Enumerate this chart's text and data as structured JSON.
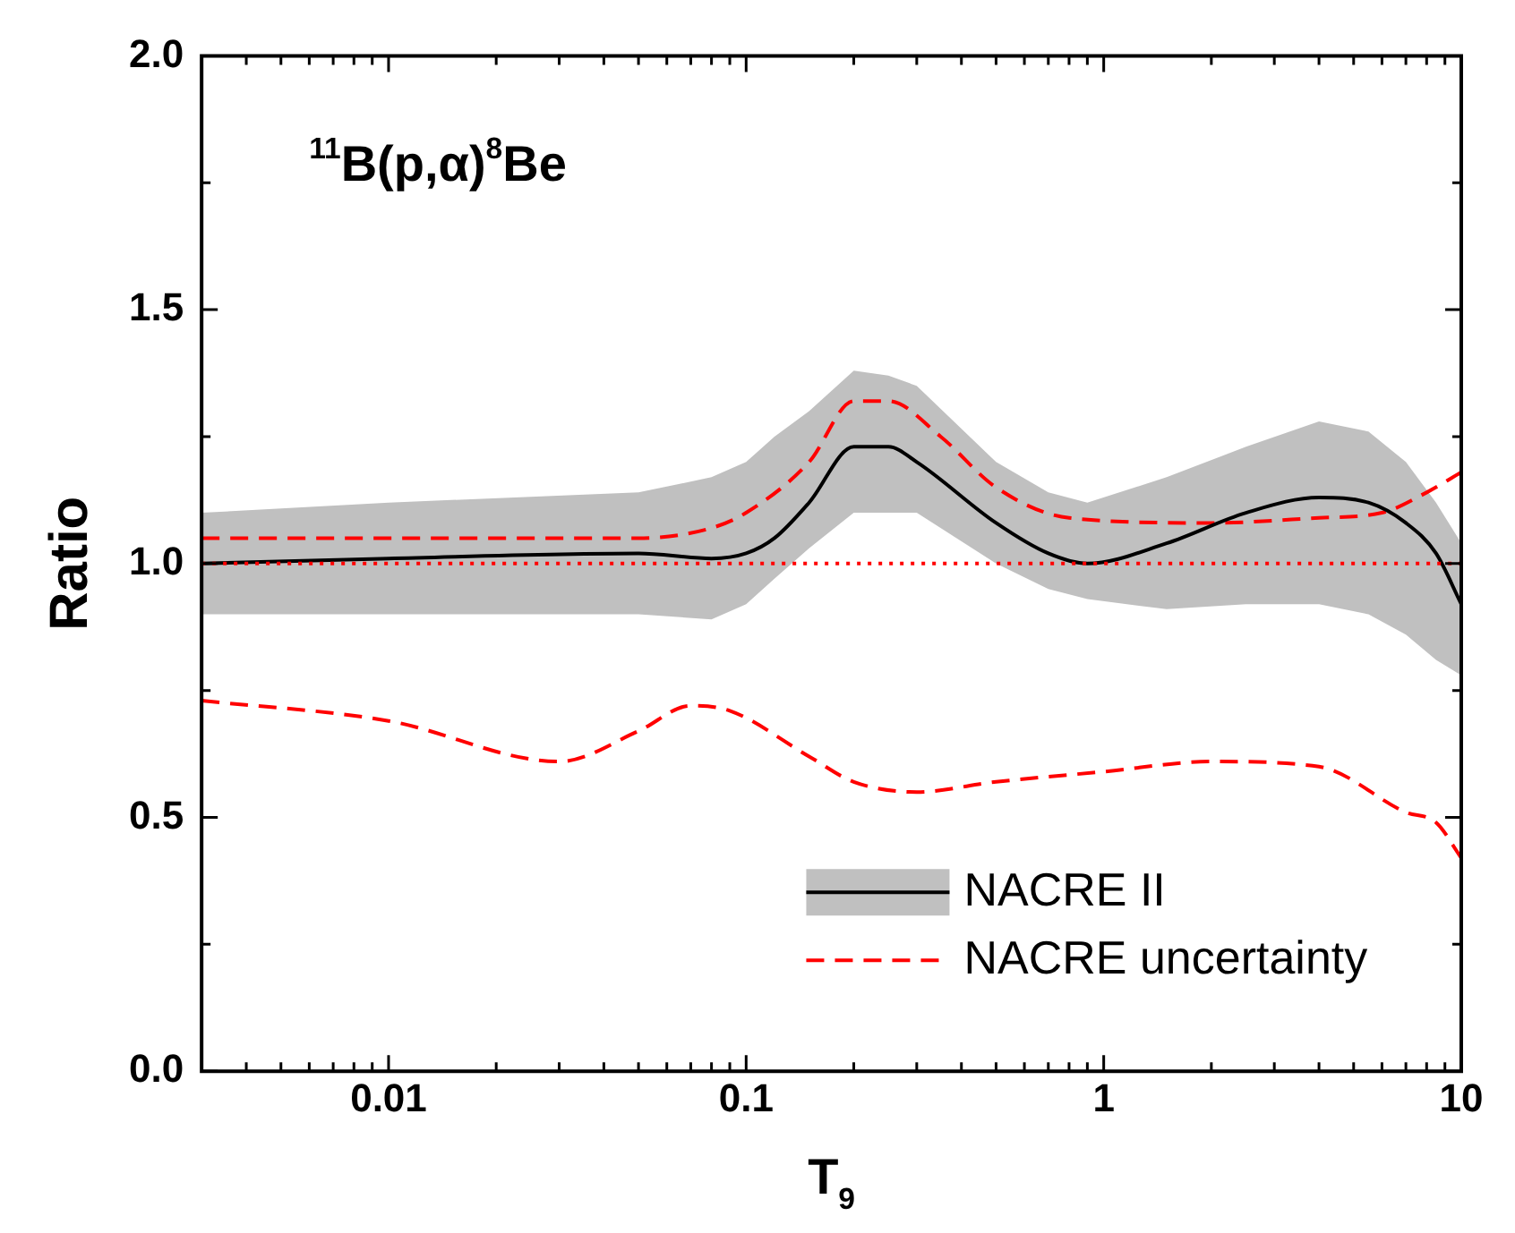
{
  "chart_data": {
    "type": "line",
    "xlabel": "T$_{9}$",
    "ylabel": "Ratio",
    "annotations": [
      "$^{11}$B(p,α)$^{8}$Be"
    ],
    "log": "x",
    "xlim": [
      0.003,
      10
    ],
    "ylim": [
      0,
      2
    ],
    "xticks": [
      {
        "value": 0.004,
        "label": null
      },
      {
        "value": 0.005,
        "label": null
      },
      {
        "value": 0.006,
        "label": null
      },
      {
        "value": 0.007,
        "label": null
      },
      {
        "value": 0.008,
        "label": null
      },
      {
        "value": 0.009,
        "label": null
      },
      0.01,
      {
        "value": 0.02,
        "label": null
      },
      {
        "value": 0.03,
        "label": null
      },
      {
        "value": 0.04,
        "label": null
      },
      {
        "value": 0.05,
        "label": null
      },
      {
        "value": 0.06,
        "label": null
      },
      {
        "value": 0.07,
        "label": null
      },
      {
        "value": 0.08,
        "label": null
      },
      {
        "value": 0.09,
        "label": null
      },
      0.1,
      {
        "value": 0.2,
        "label": null
      },
      {
        "value": 0.3,
        "label": null
      },
      {
        "value": 0.4,
        "label": null
      },
      {
        "value": 0.5,
        "label": null
      },
      {
        "value": 0.6,
        "label": null
      },
      {
        "value": 0.7,
        "label": null
      },
      {
        "value": 0.8,
        "label": null
      },
      {
        "value": 0.9,
        "label": null
      },
      1,
      {
        "value": 2,
        "label": null
      },
      {
        "value": 3,
        "label": null
      },
      {
        "value": 4,
        "label": null
      },
      {
        "value": 5,
        "label": null
      },
      {
        "value": 6,
        "label": null
      },
      {
        "value": 7,
        "label": null
      },
      {
        "value": 8,
        "label": null
      },
      {
        "value": 9,
        "label": null
      },
      10
    ],
    "yticks": [
      {
        "value": 0,
        "label": "0.0"
      },
      {
        "value": 0.25,
        "label": null
      },
      {
        "value": 0.5,
        "label": "0.5"
      },
      {
        "value": 0.75,
        "label": null
      },
      {
        "value": 1,
        "label": "1.0"
      },
      {
        "value": 1.25,
        "label": null
      },
      {
        "value": 1.5,
        "label": "1.5"
      },
      {
        "value": 1.75,
        "label": null
      },
      {
        "value": 2,
        "label": "2.0"
      }
    ],
    "grid": false,
    "legend": "bottom",
    "line_style": "solid",
    "marker": "none",
    "ref_lines": [
      {
        "axis": "y",
        "value": 1,
        "color": "#ff0000",
        "line_style": "dotted"
      }
    ],
    "series": [
      {
        "name": "NACRE II",
        "color": "#000000",
        "x": [
          0.003,
          0.01,
          0.05,
          0.08,
          0.1,
          0.12,
          0.15,
          0.2,
          0.25,
          0.3,
          0.5,
          0.7,
          0.9,
          1.5,
          2.5,
          4,
          5.5,
          7,
          8.5,
          10
        ],
        "values": [
          1.0,
          1.01,
          1.02,
          1.01,
          1.02,
          1.05,
          1.12,
          1.23,
          1.23,
          1.2,
          1.08,
          1.02,
          1.0,
          1.04,
          1.1,
          1.13,
          1.12,
          1.08,
          1.02,
          0.92
        ],
        "lower": [
          0.9,
          0.9,
          0.9,
          0.89,
          0.92,
          0.97,
          1.03,
          1.1,
          1.1,
          1.1,
          1.0,
          0.95,
          0.93,
          0.91,
          0.92,
          0.92,
          0.9,
          0.86,
          0.81,
          0.78
        ],
        "upper": [
          1.1,
          1.12,
          1.14,
          1.17,
          1.2,
          1.25,
          1.3,
          1.38,
          1.37,
          1.35,
          1.2,
          1.14,
          1.12,
          1.17,
          1.23,
          1.28,
          1.26,
          1.2,
          1.12,
          1.04
        ]
      },
      {
        "name": "NACRE uncertainty",
        "color": "#ff0000",
        "line_style": "dashed",
        "x": [
          0.003,
          0.02,
          0.05,
          0.08,
          0.1,
          0.15,
          0.2,
          0.25,
          0.35,
          0.5,
          0.8,
          2,
          4,
          6,
          8,
          10
        ],
        "values": [
          1.05,
          1.05,
          1.05,
          1.07,
          1.1,
          1.2,
          1.32,
          1.32,
          1.25,
          1.15,
          1.09,
          1.08,
          1.09,
          1.1,
          1.14,
          1.18
        ]
      },
      {
        "color": "#ff0000",
        "line_style": "dashed",
        "x": [
          0.003,
          0.01,
          0.03,
          0.05,
          0.07,
          0.09,
          0.15,
          0.2,
          0.3,
          0.5,
          1,
          2,
          4,
          7,
          8.5,
          10
        ],
        "values": [
          0.73,
          0.69,
          0.61,
          0.67,
          0.72,
          0.71,
          0.62,
          0.57,
          0.55,
          0.57,
          0.59,
          0.61,
          0.6,
          0.51,
          0.49,
          0.42
        ]
      }
    ]
  }
}
